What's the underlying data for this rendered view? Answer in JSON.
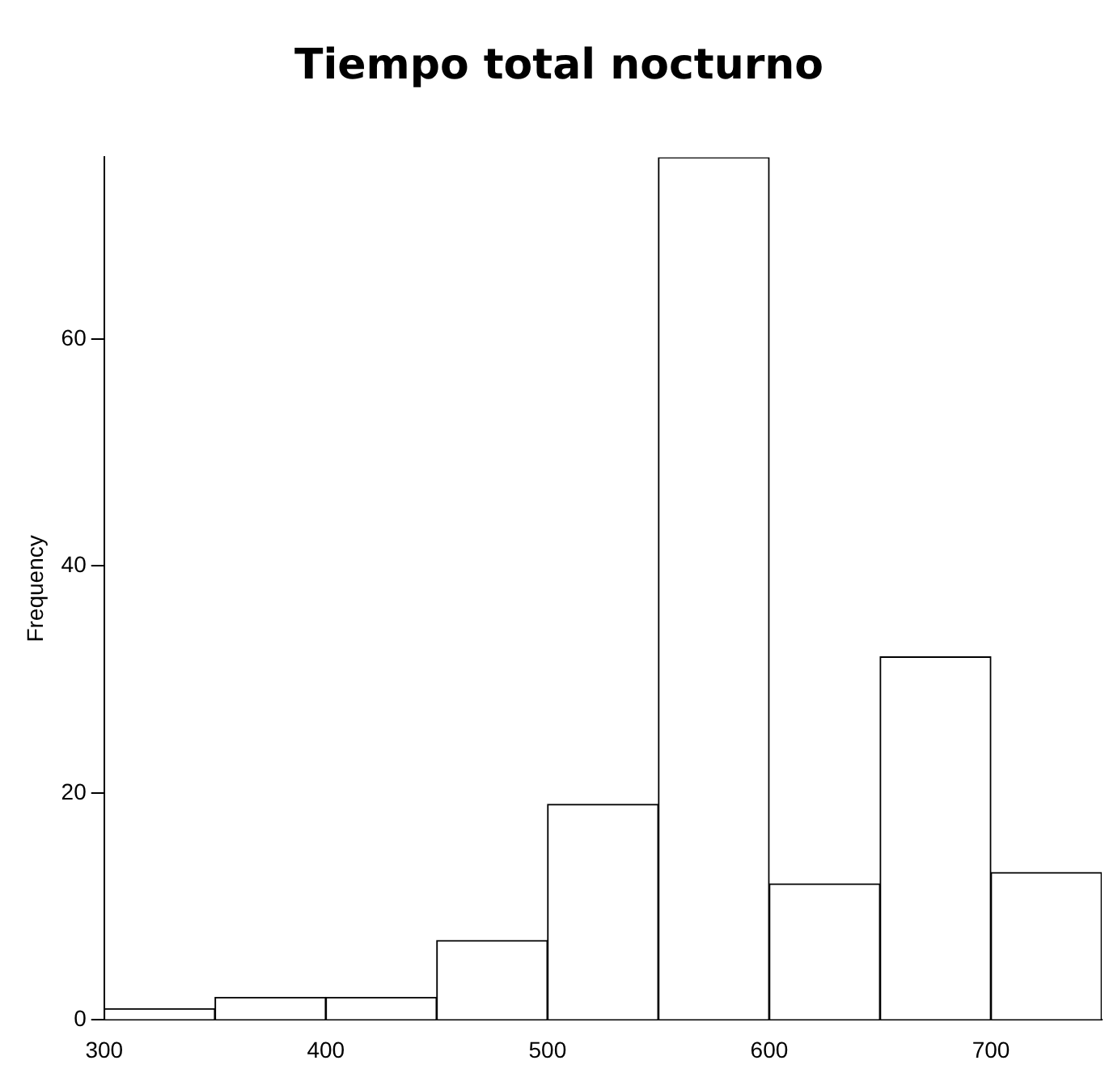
{
  "chart_data": {
    "type": "histogram",
    "title": "Tiempo total nocturno",
    "ylabel": "Frequency",
    "bins": [
      300,
      350,
      400,
      450,
      500,
      550,
      600,
      650,
      700,
      750
    ],
    "values": [
      1,
      2,
      2,
      7,
      19,
      76,
      12,
      32,
      13
    ],
    "color": "#ffffff",
    "xlim": [
      300,
      750
    ],
    "xticks": [
      300,
      400,
      500,
      600,
      700
    ],
    "ylim": [
      0,
      76
    ],
    "yticks": [
      0,
      20,
      40,
      60
    ],
    "grid": false,
    "legend": false
  }
}
